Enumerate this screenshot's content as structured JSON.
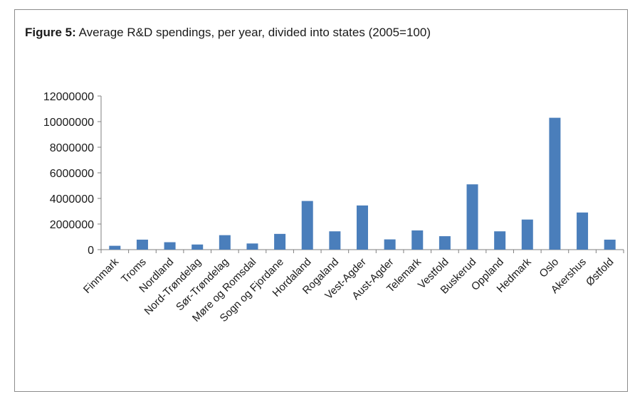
{
  "caption": {
    "label": "Figure 5:",
    "text": "Average R&D spendings, per year,  divided into states (2005=100)"
  },
  "chart_data": {
    "type": "bar",
    "title": "Figure 5: Average R&D spendings, per year,  divided into states (2005=100)",
    "xlabel": "",
    "ylabel": "",
    "ylim": [
      0,
      12000000
    ],
    "yticks": [
      0,
      2000000,
      4000000,
      6000000,
      8000000,
      10000000,
      12000000
    ],
    "ytick_labels": [
      "0",
      "2000000",
      "4000000",
      "6000000",
      "8000000",
      "10000000",
      "12000000"
    ],
    "grid": false,
    "legend": "none",
    "bar_color": "#4a7ebb",
    "categories": [
      "Finnmark",
      "Troms",
      "Nordland",
      "Nord-Trøndelag",
      "Sør-Trøndelag",
      "Møre og Romsdal",
      "Sogn og Fjordane",
      "Hordaland",
      "Rogaland",
      "Vest-Agder",
      "Aust-Agder",
      "Telemark",
      "Vestfold",
      "Buskerud",
      "Oppland",
      "Hedmark",
      "Oslo",
      "Akershus",
      "Østfold"
    ],
    "values": [
      300000,
      780000,
      580000,
      400000,
      1130000,
      480000,
      1230000,
      3800000,
      1430000,
      3450000,
      800000,
      1500000,
      1050000,
      5100000,
      1430000,
      2350000,
      10300000,
      2900000,
      780000
    ]
  }
}
